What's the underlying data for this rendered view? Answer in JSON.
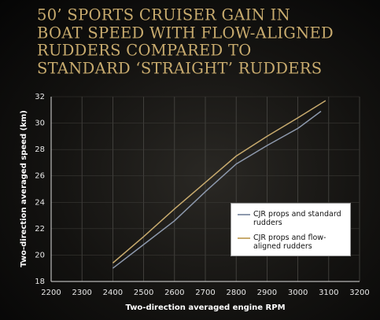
{
  "chart_data": {
    "type": "line",
    "title_lines": [
      "50’ SPORTS CRUISER GAIN IN",
      "BOAT SPEED WITH FLOW-ALIGNED",
      "RUDDERS COMPARED TO",
      "STANDARD ‘STRAIGHT’ RUDDERS"
    ],
    "x_label": "Two-direction averaged engine RPM",
    "y_label": "Two-direction averaged speed (km)",
    "series": [
      {
        "name": "CJR props and standard rudders",
        "color": "#8d99ad",
        "x": [
          2400,
          2500,
          2600,
          2700,
          2800,
          2900,
          3000,
          3075
        ],
        "values": [
          19.0,
          20.8,
          22.6,
          24.8,
          26.9,
          28.3,
          29.6,
          30.9
        ]
      },
      {
        "name": "CJR props and flow-aligned rudders",
        "color": "#c8ab6e",
        "x": [
          2400,
          2500,
          2600,
          2700,
          2800,
          2900,
          3000,
          3090
        ],
        "values": [
          19.4,
          21.4,
          23.5,
          25.5,
          27.5,
          29.0,
          30.4,
          31.7
        ]
      }
    ],
    "xlim": [
      2200,
      3200
    ],
    "xticks": [
      2200,
      2300,
      2400,
      2500,
      2600,
      2700,
      2800,
      2900,
      3000,
      3100,
      3200
    ],
    "ylim": [
      18,
      32
    ],
    "yticks": [
      18,
      20,
      22,
      24,
      26,
      28,
      30,
      32
    ],
    "grid": true
  }
}
